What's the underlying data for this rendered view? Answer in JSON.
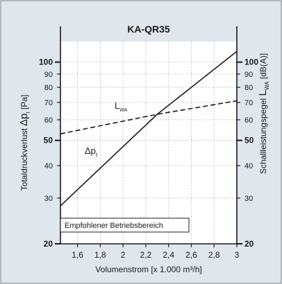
{
  "colors": {
    "frame_fill": "#dfe6ec",
    "frame_border": "#9aa3ab",
    "plot_bg": "#ffffff",
    "grid": "#a8a8a8",
    "line": "#1a1a1a",
    "text": "#1a1a1a"
  },
  "chart_data": {
    "type": "line",
    "title": "KA-QR35",
    "xlabel": "Volumenstrom [x 1.000 m³/h]",
    "ylabel_left": {
      "prefix": "Totaldruckverlust ",
      "delta": "Δ",
      "symbol": "p",
      "subscript": "t",
      "unit": " [Pa]"
    },
    "ylabel_right": {
      "prefix": "Schallleistungspegel ",
      "symbol": "L",
      "subscript": "WA",
      "unit": " [dB(A)]"
    },
    "x_scale": "linear",
    "xlim": [
      1.45,
      3.0
    ],
    "x_ticks": [
      1.6,
      1.8,
      2.0,
      2.2,
      2.4,
      2.6,
      2.8,
      3.0
    ],
    "x_tick_labels": [
      "1,6",
      "1,8",
      "2",
      "2,2",
      "2,4",
      "2,6",
      "2,8",
      "3"
    ],
    "y_scale": "log",
    "ylim": [
      20,
      120
    ],
    "y_ticks": [
      20,
      30,
      40,
      50,
      60,
      70,
      80,
      90,
      100
    ],
    "y_tick_labels": [
      "20",
      "30",
      "40",
      "50",
      "60",
      "70",
      "80",
      "90",
      "100"
    ],
    "y_bold_ticks": [
      20,
      50,
      100
    ],
    "y_right_tick_labels": [
      "20",
      "30",
      "40",
      "50",
      "60",
      "70",
      "80",
      "90",
      "100"
    ],
    "grid": true,
    "series": [
      {
        "name": "Δp",
        "name_sub": "t",
        "style": "solid",
        "x": [
          1.45,
          2.3,
          3.0
        ],
        "y": [
          28,
          63,
          110
        ]
      },
      {
        "name": "L",
        "name_sub": "WA",
        "style": "dashed",
        "x": [
          1.45,
          2.3,
          3.0
        ],
        "y": [
          53,
          63,
          71
        ]
      }
    ],
    "annotation": "Empfohlener Betriebsbereich"
  }
}
